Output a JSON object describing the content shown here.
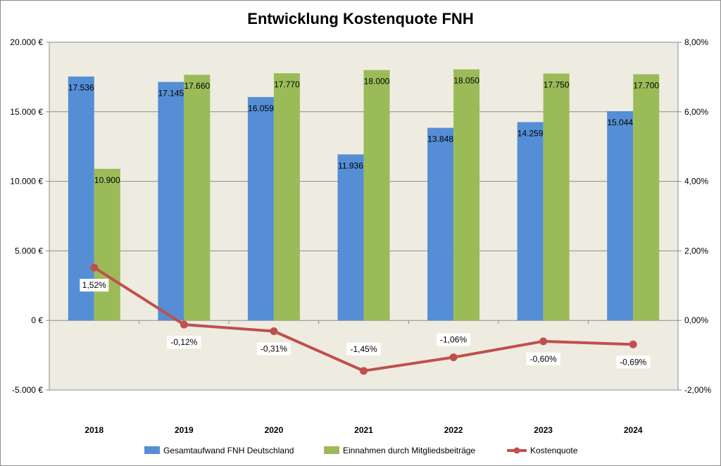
{
  "chart_data": {
    "type": "bar",
    "title": "Entwicklung Kostenquote FNH",
    "categories": [
      "2018",
      "2019",
      "2020",
      "2021",
      "2022",
      "2023",
      "2024"
    ],
    "series": [
      {
        "name": "Gesamtaufwand FNH Deutschland",
        "type": "bar",
        "axis": "left",
        "color": "#558ED5",
        "values": [
          17536,
          17145,
          16059,
          11936,
          13848,
          14259,
          15044
        ],
        "labels": [
          "17.536",
          "17.145",
          "16.059",
          "11.936",
          "13.848",
          "14.259",
          "15.044"
        ]
      },
      {
        "name": "Einnahmen durch Mitgliedsbeiträge",
        "type": "bar",
        "axis": "left",
        "color": "#9BBB59",
        "values": [
          10900,
          17660,
          17770,
          18000,
          18050,
          17750,
          17700
        ],
        "labels": [
          "10.900",
          "17.660",
          "17.770",
          "18.000",
          "18.050",
          "17.750",
          "17.700"
        ]
      },
      {
        "name": "Kostenquote",
        "type": "line",
        "axis": "right",
        "color": "#C0504D",
        "values": [
          1.52,
          -0.12,
          -0.31,
          -1.45,
          -1.06,
          -0.6,
          -0.69
        ],
        "labels": [
          "1,52%",
          "-0,12%",
          "-0,31%",
          "-1,45%",
          "-1,06%",
          "-0,60%",
          "-0,69%"
        ]
      }
    ],
    "y_left": {
      "range": [
        -5000,
        20000
      ],
      "ticks": [
        -5000,
        0,
        5000,
        10000,
        15000,
        20000
      ],
      "tick_labels": [
        "-5.000 €",
        "0 €",
        "5.000 €",
        "10.000 €",
        "15.000 €",
        "20.000 €"
      ]
    },
    "y_right": {
      "range": [
        -2,
        8
      ],
      "ticks": [
        -2,
        0,
        2,
        4,
        6,
        8
      ],
      "tick_labels": [
        "-2,00%",
        "0,00%",
        "2,00%",
        "4,00%",
        "6,00%",
        "8,00%"
      ]
    },
    "grid": true,
    "legend_position": "bottom",
    "plot_background": "#EEECE1"
  }
}
